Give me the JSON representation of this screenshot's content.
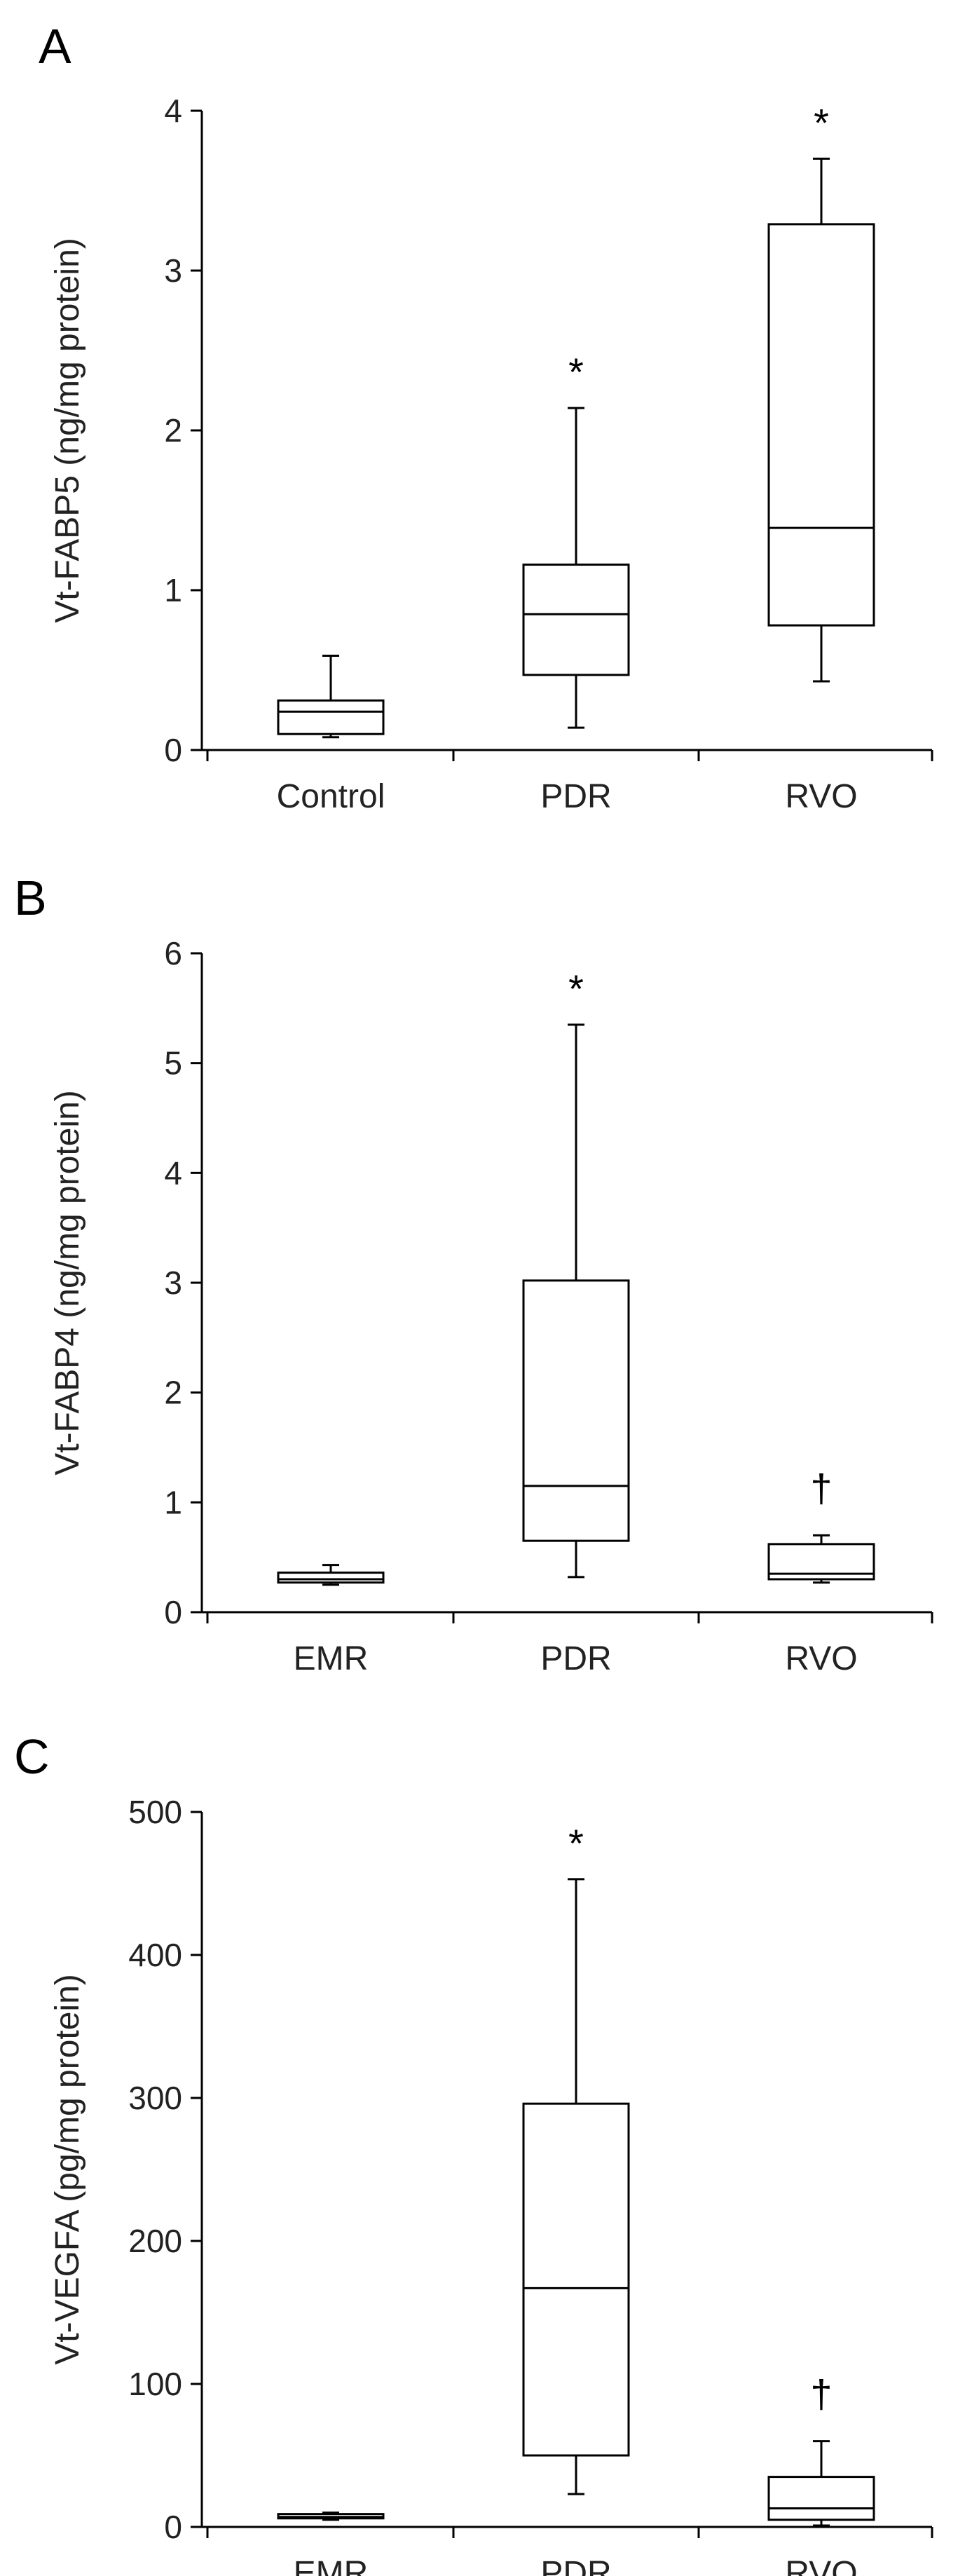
{
  "chart_data": [
    {
      "type": "box",
      "panel_label": "A",
      "ylabel": "Vt-FABP5 (ng/mg protein)",
      "ylim": [
        0,
        4
      ],
      "yticks": [
        0,
        1,
        2,
        3,
        4
      ],
      "categories": [
        "Control",
        "PDR",
        "RVO"
      ],
      "boxes": [
        {
          "min": 0.08,
          "q1": 0.1,
          "median": 0.24,
          "q3": 0.31,
          "max": 0.59,
          "annotation": ""
        },
        {
          "min": 0.14,
          "q1": 0.47,
          "median": 0.85,
          "q3": 1.16,
          "max": 2.14,
          "annotation": "*"
        },
        {
          "min": 0.43,
          "q1": 0.78,
          "median": 1.39,
          "q3": 3.29,
          "max": 3.7,
          "annotation": "*"
        }
      ]
    },
    {
      "type": "box",
      "panel_label": "B",
      "ylabel": "Vt-FABP4 (ng/mg protein)",
      "ylim": [
        0,
        6
      ],
      "yticks": [
        0,
        1,
        2,
        3,
        4,
        5,
        6
      ],
      "categories": [
        "EMR",
        "PDR",
        "RVO"
      ],
      "boxes": [
        {
          "min": 0.25,
          "q1": 0.27,
          "median": 0.3,
          "q3": 0.36,
          "max": 0.43,
          "annotation": ""
        },
        {
          "min": 0.32,
          "q1": 0.65,
          "median": 1.15,
          "q3": 3.02,
          "max": 5.35,
          "annotation": "*"
        },
        {
          "min": 0.27,
          "q1": 0.3,
          "median": 0.35,
          "q3": 0.62,
          "max": 0.7,
          "annotation": "†"
        }
      ]
    },
    {
      "type": "box",
      "panel_label": "C",
      "ylabel": "Vt-VEGFA (pg/mg protein)",
      "ylim": [
        0,
        500
      ],
      "yticks": [
        0,
        100,
        200,
        300,
        400,
        500
      ],
      "categories": [
        "EMR",
        "PDR",
        "RVO"
      ],
      "boxes": [
        {
          "min": 5,
          "q1": 6,
          "median": 7,
          "q3": 9,
          "max": 10,
          "annotation": ""
        },
        {
          "min": 23,
          "q1": 50,
          "median": 167,
          "q3": 296,
          "max": 453,
          "annotation": "*"
        },
        {
          "min": 1,
          "q1": 5,
          "median": 13,
          "q3": 35,
          "max": 60,
          "annotation": "†"
        }
      ]
    }
  ]
}
